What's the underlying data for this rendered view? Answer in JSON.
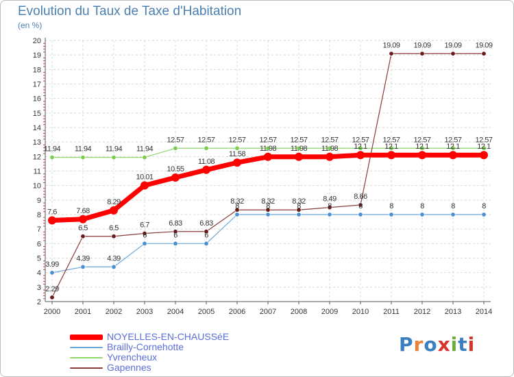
{
  "title": "Evolution du Taux de Taxe d'Habitation",
  "subtitle": "(en %)",
  "logo": {
    "text": "Proxiti",
    "letters": [
      "P",
      "r",
      "o",
      "x",
      "i",
      "t",
      "i"
    ],
    "colors": [
      "#3a7fc1",
      "#e8823a",
      "#3a7fc1",
      "#d9342b",
      "#6cae3a",
      "#3a7fc1",
      "#d9342b"
    ]
  },
  "chart_data": {
    "type": "line",
    "title": "Evolution du Taux de Taxe d'Habitation",
    "ylabel": "(en %)",
    "x": [
      "2000",
      "2001",
      "2002",
      "2003",
      "2004",
      "2005",
      "2006",
      "2007",
      "2008",
      "2009",
      "2010",
      "2011",
      "2012",
      "2013",
      "2014"
    ],
    "ylim": [
      2,
      20
    ],
    "yticks": [
      2,
      3,
      4,
      5,
      6,
      7,
      8,
      9,
      10,
      11,
      12,
      13,
      14,
      15,
      16,
      17,
      18,
      19,
      20
    ],
    "grid": true,
    "legend_position": "bottom-left",
    "series": [
      {
        "name": "NOYELLES-EN-CHAUSSéE",
        "color": "#ff0000",
        "marker_color": "#ff0000",
        "emphasis": true,
        "values": [
          7.6,
          7.68,
          8.29,
          10.01,
          10.55,
          11.08,
          11.58,
          11.98,
          11.98,
          11.98,
          12.1,
          12.1,
          12.1,
          12.1,
          12.1
        ],
        "labels": [
          "7.6",
          "7.68",
          "8.29",
          "10.01",
          "10.55",
          "11.08",
          "11.58",
          "11.98",
          "11.98",
          "11.98",
          "12.1",
          "12.1",
          "12.1",
          "12.1",
          "12.1"
        ]
      },
      {
        "name": "Brailly-Cornehotte",
        "color": "#6aa6d6",
        "marker_color": "#4a90d0",
        "emphasis": false,
        "values": [
          3.99,
          4.39,
          4.39,
          6,
          6,
          6,
          8,
          8,
          8,
          8,
          8,
          8,
          8,
          8,
          8
        ],
        "labels": [
          "3.99",
          "4.39",
          "4.39",
          "6",
          "6",
          "6",
          "8",
          "8",
          "8",
          "8",
          "8",
          "8",
          "8",
          "8",
          "8"
        ]
      },
      {
        "name": "Yvrencheux",
        "color": "#8fd86a",
        "marker_color": "#7ccc4e",
        "emphasis": false,
        "values": [
          11.94,
          11.94,
          11.94,
          11.94,
          12.57,
          12.57,
          12.57,
          12.57,
          12.57,
          12.57,
          12.57,
          12.57,
          12.57,
          12.57,
          12.57
        ],
        "labels": [
          "11.94",
          "11.94",
          "11.94",
          "11.94",
          "12.57",
          "12.57",
          "12.57",
          "12.57",
          "12.57",
          "12.57",
          "12.57",
          "12.57",
          "12.57",
          "12.57",
          "12.57"
        ]
      },
      {
        "name": "Gapennes",
        "color": "#8a3a3a",
        "marker_color": "#6a1a1a",
        "emphasis": false,
        "values": [
          2.29,
          6.5,
          6.5,
          6.7,
          6.83,
          6.83,
          8.32,
          8.32,
          8.32,
          8.49,
          8.66,
          19.09,
          19.09,
          19.09,
          19.09
        ],
        "labels": [
          "2.29",
          "6.5",
          "6.5",
          "6.7",
          "6.83",
          "6.83",
          "8.32",
          "8.32",
          "8.32",
          "8.49",
          "8.66",
          "19.09",
          "19.09",
          "19.09",
          "19.09"
        ]
      }
    ]
  }
}
